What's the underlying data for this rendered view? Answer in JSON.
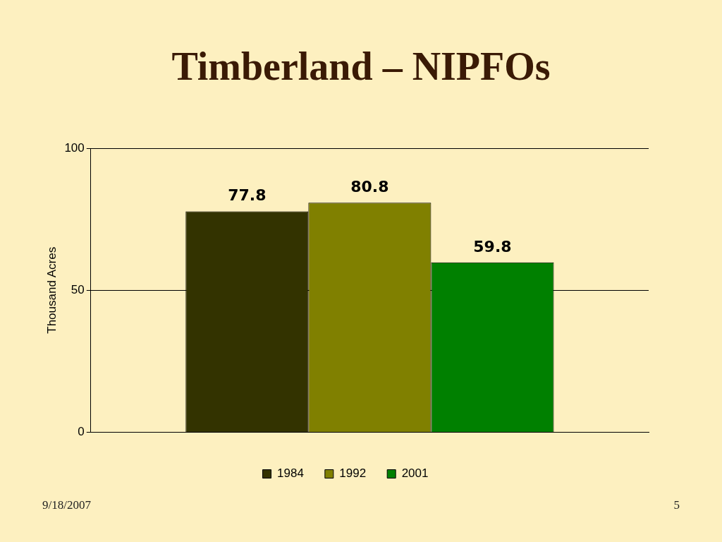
{
  "chart_data": {
    "type": "bar",
    "title": "Timberland – NIPFOs",
    "ylabel": "Thousand Acres",
    "categories": [
      null
    ],
    "series": [
      {
        "name": "1984",
        "color": "#333300",
        "values": [
          77.8
        ]
      },
      {
        "name": "1992",
        "color": "#808000",
        "values": [
          80.8
        ]
      },
      {
        "name": "2001",
        "color": "#008000",
        "values": [
          59.8
        ]
      }
    ],
    "ylim": [
      0,
      100
    ],
    "yticks": [
      0,
      50,
      100
    ],
    "grid": "y",
    "legend": "bottom",
    "data_labels": true,
    "annotations": [
      "9/18/2007",
      "5"
    ]
  }
}
